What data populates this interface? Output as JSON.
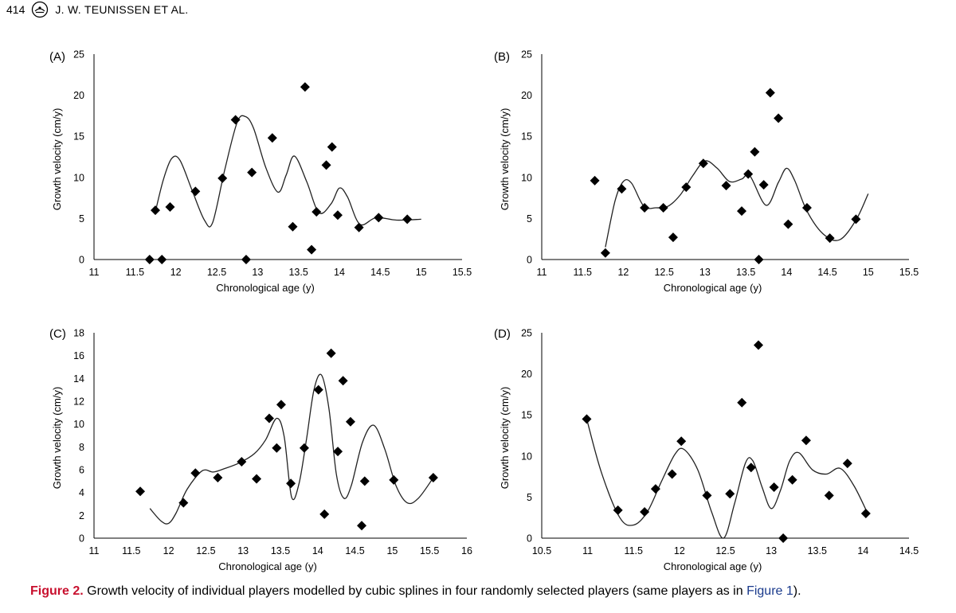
{
  "header": {
    "page_number": "414",
    "running_head": "J. W. TEUNISSEN ET AL."
  },
  "caption": {
    "label": "Figure 2.",
    "text_before": "Growth velocity of individual players modelled by cubic splines in four randomly selected players (same players as in ",
    "link": "Figure 1",
    "text_after": ")."
  },
  "colors": {
    "caption_label": "#c8102e",
    "caption_link": "#1a3a8c",
    "axis": "#000000",
    "marker": "#000000"
  },
  "chart_data": [
    {
      "type": "scatter",
      "panel_label": "(A)",
      "xlabel": "Chronological age (y)",
      "ylabel": "Growth velocity (cm/y)",
      "xlim": [
        11,
        15.5
      ],
      "ylim": [
        0,
        25
      ],
      "xticks": [
        "11",
        "11.5",
        "12",
        "12.5",
        "13",
        "13.5",
        "14",
        "14.5",
        "15",
        "15.5"
      ],
      "xtick_values": [
        11,
        11.5,
        12,
        12.5,
        13,
        13.5,
        14,
        14.5,
        15,
        15.5
      ],
      "yticks": [
        "0",
        "5",
        "10",
        "15",
        "20",
        "25"
      ],
      "ytick_values": [
        0,
        5,
        10,
        15,
        20,
        25
      ],
      "grid": false,
      "legend": "none",
      "points": {
        "x": [
          11.68,
          11.75,
          11.83,
          11.93,
          12.24,
          12.57,
          12.73,
          12.86,
          12.93,
          13.18,
          13.43,
          13.58,
          13.66,
          13.72,
          13.84,
          13.91,
          13.98,
          14.24,
          14.48,
          14.83
        ],
        "y": [
          0,
          6,
          0,
          6.4,
          8.3,
          9.9,
          17,
          0,
          10.6,
          14.8,
          4,
          21,
          1.2,
          5.8,
          11.5,
          13.7,
          5.4,
          3.9,
          5.1,
          4.9
        ]
      },
      "spline": {
        "x": [
          11.75,
          11.85,
          11.95,
          12.05,
          12.2,
          12.35,
          12.45,
          12.6,
          12.75,
          12.85,
          12.95,
          13.1,
          13.25,
          13.35,
          13.45,
          13.6,
          13.75,
          13.9,
          14.0,
          14.1,
          14.25,
          14.45,
          14.7,
          15.0
        ],
        "y": [
          5.8,
          9.8,
          12.3,
          12.1,
          8.4,
          4.8,
          4.5,
          11,
          16.7,
          17.4,
          16,
          11.2,
          8.2,
          10.3,
          12.6,
          9.5,
          5.7,
          6.8,
          8.7,
          7.6,
          4.3,
          5.1,
          4.8,
          4.9
        ]
      }
    },
    {
      "type": "scatter",
      "panel_label": "(B)",
      "xlabel": "Chronological age (y)",
      "ylabel": "Growth velocity (cm/y)",
      "xlim": [
        11,
        15.5
      ],
      "ylim": [
        0,
        25
      ],
      "xticks": [
        "11",
        "11.5",
        "12",
        "12.5",
        "13",
        "13.5",
        "14",
        "14.5",
        "15",
        "15.5"
      ],
      "xtick_values": [
        11,
        11.5,
        12,
        12.5,
        13,
        13.5,
        14,
        14.5,
        15,
        15.5
      ],
      "yticks": [
        "0",
        "5",
        "10",
        "15",
        "20",
        "25"
      ],
      "ytick_values": [
        0,
        5,
        10,
        15,
        20,
        25
      ],
      "grid": false,
      "legend": "none",
      "points": {
        "x": [
          11.65,
          11.78,
          11.98,
          12.26,
          12.49,
          12.61,
          12.77,
          12.98,
          13.26,
          13.45,
          13.53,
          13.61,
          13.66,
          13.72,
          13.8,
          13.9,
          14.02,
          14.25,
          14.53,
          14.85
        ],
        "y": [
          9.6,
          0.8,
          8.6,
          6.3,
          6.3,
          2.7,
          8.8,
          11.7,
          9,
          5.9,
          10.4,
          13.1,
          0,
          9.1,
          20.3,
          17.2,
          4.3,
          6.3,
          2.6,
          4.9
        ]
      },
      "spline": {
        "x": [
          11.78,
          11.9,
          12.0,
          12.1,
          12.25,
          12.4,
          12.55,
          12.7,
          12.85,
          13.0,
          13.15,
          13.3,
          13.45,
          13.55,
          13.75,
          13.9,
          14.0,
          14.1,
          14.25,
          14.45,
          14.65,
          14.85,
          15.0
        ],
        "y": [
          1.5,
          7.2,
          9.5,
          9.3,
          6.5,
          6.3,
          6.5,
          7.9,
          10.2,
          12,
          11.1,
          9.5,
          9.8,
          10.2,
          6.6,
          9.4,
          11.1,
          9.6,
          5.9,
          3.1,
          2.4,
          4.8,
          8
        ]
      }
    },
    {
      "type": "scatter",
      "panel_label": "(C)",
      "xlabel": "Chronological age (y)",
      "ylabel": "Growth velocity (cm/y)",
      "xlim": [
        11,
        16
      ],
      "ylim": [
        0,
        18
      ],
      "xticks": [
        "11",
        "11.5",
        "12",
        "12.5",
        "13",
        "13.5",
        "14",
        "14.5",
        "15",
        "15.5",
        "16"
      ],
      "xtick_values": [
        11,
        11.5,
        12,
        12.5,
        13,
        13.5,
        14,
        14.5,
        15,
        15.5,
        16
      ],
      "yticks": [
        "0",
        "2",
        "4",
        "6",
        "8",
        "10",
        "12",
        "14",
        "16",
        "18"
      ],
      "ytick_values": [
        0,
        2,
        4,
        6,
        8,
        10,
        12,
        14,
        16,
        18
      ],
      "grid": false,
      "legend": "none",
      "points": {
        "x": [
          11.62,
          12.2,
          12.36,
          12.66,
          12.98,
          13.18,
          13.35,
          13.45,
          13.51,
          13.64,
          13.82,
          14.01,
          14.09,
          14.18,
          14.27,
          14.34,
          14.44,
          14.59,
          14.63,
          15.02,
          15.55
        ],
        "y": [
          4.1,
          3.1,
          5.7,
          5.3,
          6.7,
          5.2,
          10.5,
          7.9,
          11.7,
          4.8,
          7.9,
          13,
          2.1,
          16.2,
          7.6,
          13.8,
          10.2,
          1.1,
          5,
          5.1,
          5.3
        ]
      },
      "spline": {
        "x": [
          11.75,
          11.9,
          12.0,
          12.1,
          12.25,
          12.45,
          12.6,
          12.75,
          12.95,
          13.15,
          13.3,
          13.45,
          13.55,
          13.65,
          13.75,
          13.85,
          13.95,
          14.05,
          14.15,
          14.25,
          14.35,
          14.45,
          14.6,
          14.75,
          14.9,
          15.05,
          15.2,
          15.35,
          15.55
        ],
        "y": [
          2.6,
          1.5,
          1.3,
          2.2,
          4.3,
          5.9,
          5.8,
          6.1,
          6.6,
          7.4,
          8.6,
          10.5,
          8.9,
          3.6,
          4.8,
          8.7,
          13,
          14.3,
          11.4,
          5.6,
          3.5,
          4.6,
          8.4,
          9.9,
          7.8,
          4.6,
          3.1,
          3.5,
          5.3
        ]
      }
    },
    {
      "type": "scatter",
      "panel_label": "(D)",
      "xlabel": "Chronological age (y)",
      "ylabel": "Growth velocity (cm/y)",
      "xlim": [
        10.5,
        14.5
      ],
      "ylim": [
        0,
        25
      ],
      "xticks": [
        "10.5",
        "11",
        "11.5",
        "12",
        "12.5",
        "13",
        "13.5",
        "14",
        "14.5"
      ],
      "xtick_values": [
        10.5,
        11,
        11.5,
        12,
        12.5,
        13,
        13.5,
        14,
        14.5
      ],
      "yticks": [
        "0",
        "5",
        "10",
        "15",
        "20",
        "25"
      ],
      "ytick_values": [
        0,
        5,
        10,
        15,
        20,
        25
      ],
      "grid": false,
      "legend": "none",
      "points": {
        "x": [
          10.99,
          11.33,
          11.62,
          11.74,
          11.92,
          12.02,
          12.3,
          12.55,
          12.68,
          12.78,
          12.86,
          13.03,
          13.13,
          13.23,
          13.38,
          13.63,
          13.83,
          14.03
        ],
        "y": [
          14.5,
          3.4,
          3.2,
          6,
          7.8,
          11.8,
          5.2,
          5.4,
          16.5,
          8.6,
          23.5,
          6.2,
          0,
          7.1,
          11.9,
          5.2,
          9.1,
          3
        ]
      },
      "spline": {
        "x": [
          10.99,
          11.15,
          11.35,
          11.5,
          11.65,
          11.8,
          11.95,
          12.05,
          12.2,
          12.35,
          12.48,
          12.6,
          12.72,
          12.8,
          12.9,
          13.0,
          13.1,
          13.2,
          13.3,
          13.45,
          13.6,
          13.75,
          13.9,
          14.05
        ],
        "y": [
          14.5,
          8,
          2.5,
          1.6,
          3.2,
          6.8,
          10.2,
          10.8,
          8.3,
          3.2,
          0,
          4.2,
          9.2,
          9.4,
          6.2,
          3.6,
          5.8,
          9.4,
          10.4,
          8.3,
          7.8,
          8.5,
          6.4,
          3
        ]
      }
    }
  ]
}
